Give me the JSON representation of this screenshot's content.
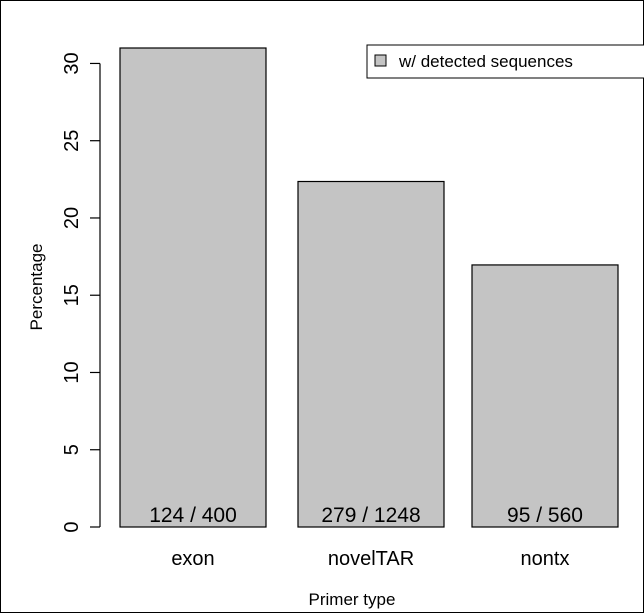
{
  "chart_data": {
    "type": "bar",
    "categories": [
      "exon",
      "novelTAR",
      "nontx"
    ],
    "series": [
      {
        "name": "w/ detected sequences",
        "values": [
          31.0,
          22.36,
          16.96
        ]
      }
    ],
    "data_labels": [
      "124 / 400",
      "279 / 1248",
      "95 / 560"
    ],
    "xlabel": "Primer type",
    "ylabel": "Percentage",
    "ylim": [
      0,
      31
    ],
    "yticks": [
      "0",
      "5",
      "10",
      "15",
      "20",
      "25",
      "30"
    ],
    "grid": false,
    "legend_position": "top-right",
    "colors": {
      "bar_fill": "#c4c4c4",
      "bar_stroke": "#000000",
      "axis": "#000000",
      "background": "#ffffff"
    }
  }
}
